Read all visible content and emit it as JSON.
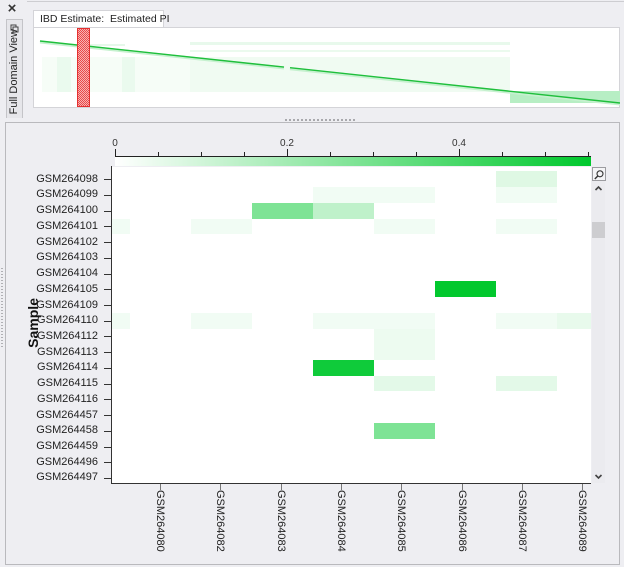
{
  "left_dock": {
    "close_label": "×",
    "tab_label": "Full Domain View",
    "pin_icon": "pin-icon"
  },
  "preview": {
    "tab_label": "IBD Estimate:  Estimated PI"
  },
  "scrollbar": {
    "zoom_icon": "magnifier-icon",
    "up_icon": "chevron-up-icon",
    "down_icon": "chevron-down-icon"
  },
  "colors": {
    "accent": "#00c82d",
    "selection": "#e53030",
    "panel_background": "#eeeef2",
    "heat_low": "#ffffff",
    "heat_high": "#00c82d"
  },
  "chart_data": {
    "type": "heatmap",
    "title": "IBD Estimate: Estimated PI",
    "xlabel": "",
    "ylabel": "Sample",
    "colorbar": {
      "min": 0,
      "max": 0.5535,
      "major_ticks": [
        0,
        0.2,
        0.4
      ],
      "tick_labels": [
        "0",
        "0.2",
        "0.4"
      ],
      "minor_step": 0.05,
      "color_low": "#ffffff",
      "color_high": "#00c82d",
      "position": "top"
    },
    "rows": [
      "GSM264098",
      "GSM264099",
      "GSM264100",
      "GSM264101",
      "GSM264102",
      "GSM264103",
      "GSM264104",
      "GSM264105",
      "GSM264109",
      "GSM264110",
      "GSM264112",
      "GSM264113",
      "GSM264114",
      "GSM264115",
      "GSM264116",
      "GSM264457",
      "GSM264458",
      "GSM264459",
      "GSM264496",
      "GSM264497"
    ],
    "columns": [
      "",
      "GSM264080",
      "GSM264082",
      "GSM264083",
      "GSM264084",
      "GSM264085",
      "GSM264086",
      "GSM264087",
      "GSM264089"
    ],
    "cells": [
      {
        "row": "GSM264098",
        "col": "GSM264087",
        "value": 0.07
      },
      {
        "row": "GSM264099",
        "col": "GSM264084",
        "value": 0.03
      },
      {
        "row": "GSM264099",
        "col": "GSM264085",
        "value": 0.03
      },
      {
        "row": "GSM264099",
        "col": "GSM264087",
        "value": 0.03
      },
      {
        "row": "GSM264100",
        "col": "GSM264083",
        "value": 0.28
      },
      {
        "row": "GSM264100",
        "col": "GSM264084",
        "value": 0.14
      },
      {
        "row": "GSM264101",
        "col": "",
        "value": 0.03
      },
      {
        "row": "GSM264101",
        "col": "GSM264082",
        "value": 0.03
      },
      {
        "row": "GSM264101",
        "col": "GSM264085",
        "value": 0.03
      },
      {
        "row": "GSM264101",
        "col": "GSM264087",
        "value": 0.03
      },
      {
        "row": "GSM264105",
        "col": "GSM264086",
        "value": 0.55
      },
      {
        "row": "GSM264110",
        "col": "",
        "value": 0.03
      },
      {
        "row": "GSM264110",
        "col": "GSM264082",
        "value": 0.03
      },
      {
        "row": "GSM264110",
        "col": "GSM264084",
        "value": 0.03
      },
      {
        "row": "GSM264110",
        "col": "GSM264085",
        "value": 0.03
      },
      {
        "row": "GSM264110",
        "col": "GSM264087",
        "value": 0.03
      },
      {
        "row": "GSM264110",
        "col": "GSM264089",
        "value": 0.05
      },
      {
        "row": "GSM264112",
        "col": "GSM264085",
        "value": 0.04
      },
      {
        "row": "GSM264113",
        "col": "GSM264085",
        "value": 0.04
      },
      {
        "row": "GSM264114",
        "col": "GSM264084",
        "value": 0.52
      },
      {
        "row": "GSM264115",
        "col": "GSM264085",
        "value": 0.06
      },
      {
        "row": "GSM264115",
        "col": "GSM264087",
        "value": 0.06
      },
      {
        "row": "GSM264458",
        "col": "GSM264085",
        "value": 0.28
      }
    ],
    "legend": "none"
  }
}
